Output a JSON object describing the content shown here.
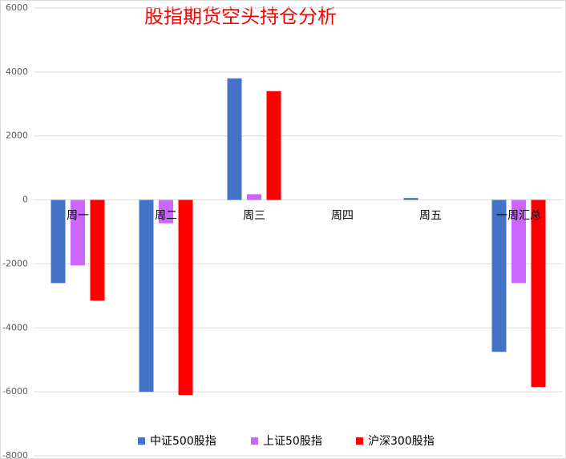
{
  "chart_data": {
    "type": "bar",
    "title": "股指期货空头持仓分析",
    "categories": [
      "周一",
      "周二",
      "周三",
      "周四",
      "周五",
      "一周汇总"
    ],
    "series": [
      {
        "name": "中证500股指",
        "color": "#4472c4",
        "values": [
          -2600,
          -6000,
          3800,
          0,
          60,
          -4750
        ]
      },
      {
        "name": "上证50股指",
        "color": "#cc66ff",
        "values": [
          -2050,
          -730,
          180,
          0,
          0,
          -2600
        ]
      },
      {
        "name": "沪深300股指",
        "color": "#ff0000",
        "values": [
          -3150,
          -6100,
          3400,
          0,
          0,
          -5850
        ]
      }
    ],
    "ylim": [
      -8000,
      6000
    ],
    "yticks": [
      -8000,
      -6000,
      -4000,
      -2000,
      0,
      2000,
      4000,
      6000
    ],
    "grid": true
  }
}
